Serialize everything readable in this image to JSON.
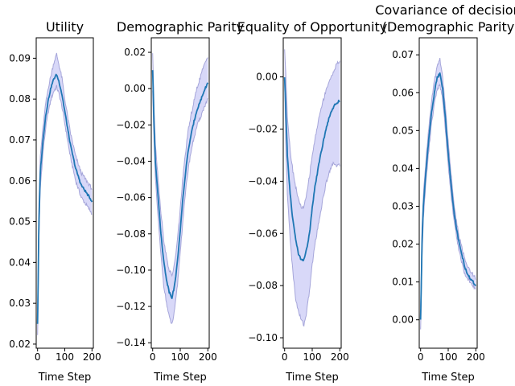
{
  "chart_data": [
    {
      "type": "line",
      "title_lines": [
        "Utility"
      ],
      "xlabel": "Time Step",
      "ylabel": "",
      "xlim": [
        -5,
        205
      ],
      "ylim": [
        0.019,
        0.095
      ],
      "xticks": [
        0,
        100,
        200
      ],
      "yticks": [
        0.02,
        0.03,
        0.04,
        0.05,
        0.06,
        0.07,
        0.08,
        0.09
      ],
      "ytick_labels": [
        "0.02",
        "0.03",
        "0.04",
        "0.05",
        "0.06",
        "0.07",
        "0.08",
        "0.09"
      ],
      "series": [
        {
          "x": [
            0,
            5,
            10,
            20,
            30,
            40,
            50,
            60,
            70,
            80,
            90,
            100,
            110,
            120,
            130,
            140,
            150,
            160,
            170,
            180,
            190,
            200
          ],
          "mean": [
            0.025,
            0.05,
            0.062,
            0.07,
            0.076,
            0.08,
            0.083,
            0.085,
            0.086,
            0.084,
            0.081,
            0.077,
            0.073,
            0.069,
            0.066,
            0.063,
            0.061,
            0.059,
            0.058,
            0.057,
            0.056,
            0.055
          ],
          "lower": [
            0.022,
            0.046,
            0.058,
            0.067,
            0.073,
            0.077,
            0.08,
            0.082,
            0.083,
            0.081,
            0.078,
            0.074,
            0.07,
            0.066,
            0.063,
            0.06,
            0.058,
            0.056,
            0.055,
            0.054,
            0.053,
            0.052
          ],
          "upper": [
            0.028,
            0.054,
            0.066,
            0.073,
            0.079,
            0.083,
            0.086,
            0.089,
            0.091,
            0.088,
            0.085,
            0.08,
            0.076,
            0.072,
            0.069,
            0.066,
            0.064,
            0.062,
            0.061,
            0.06,
            0.059,
            0.058
          ]
        }
      ]
    },
    {
      "type": "line",
      "title_lines": [
        "Demographic Parity"
      ],
      "xlabel": "Time Step",
      "ylabel": "",
      "xlim": [
        -5,
        205
      ],
      "ylim": [
        -0.143,
        0.028
      ],
      "xticks": [
        0,
        100,
        200
      ],
      "yticks": [
        -0.14,
        -0.12,
        -0.1,
        -0.08,
        -0.06,
        -0.04,
        -0.02,
        0.0,
        0.02
      ],
      "ytick_labels": [
        "−0.14",
        "−0.12",
        "−0.10",
        "−0.08",
        "−0.06",
        "−0.04",
        "−0.02",
        "0.00",
        "0.02"
      ],
      "series": [
        {
          "x": [
            0,
            5,
            10,
            20,
            30,
            40,
            50,
            60,
            70,
            80,
            90,
            100,
            110,
            120,
            130,
            140,
            150,
            160,
            170,
            180,
            190,
            200
          ],
          "mean": [
            0.01,
            -0.02,
            -0.04,
            -0.06,
            -0.08,
            -0.095,
            -0.105,
            -0.112,
            -0.115,
            -0.108,
            -0.095,
            -0.078,
            -0.06,
            -0.045,
            -0.033,
            -0.025,
            -0.018,
            -0.012,
            -0.008,
            -0.004,
            0.0,
            0.003
          ],
          "lower": [
            0.0,
            -0.03,
            -0.05,
            -0.072,
            -0.092,
            -0.108,
            -0.118,
            -0.126,
            -0.13,
            -0.122,
            -0.108,
            -0.09,
            -0.072,
            -0.056,
            -0.043,
            -0.034,
            -0.027,
            -0.021,
            -0.017,
            -0.013,
            -0.009,
            -0.006
          ],
          "upper": [
            0.02,
            -0.01,
            -0.03,
            -0.05,
            -0.068,
            -0.083,
            -0.093,
            -0.1,
            -0.103,
            -0.096,
            -0.083,
            -0.066,
            -0.048,
            -0.034,
            -0.022,
            -0.014,
            -0.007,
            0.0,
            0.005,
            0.01,
            0.014,
            0.018
          ]
        }
      ]
    },
    {
      "type": "line",
      "title_lines": [
        "Equality of Opportunity"
      ],
      "xlabel": "Time Step",
      "ylabel": "",
      "xlim": [
        -5,
        205
      ],
      "ylim": [
        -0.104,
        0.015
      ],
      "xticks": [
        0,
        100,
        200
      ],
      "yticks": [
        -0.1,
        -0.08,
        -0.06,
        -0.04,
        -0.02,
        0.0
      ],
      "ytick_labels": [
        "−0.10",
        "−0.08",
        "−0.06",
        "−0.04",
        "−0.02",
        "0.00"
      ],
      "series": [
        {
          "x": [
            0,
            5,
            10,
            20,
            30,
            40,
            50,
            60,
            70,
            80,
            90,
            100,
            110,
            120,
            130,
            140,
            150,
            160,
            170,
            180,
            190,
            200
          ],
          "mean": [
            0.0,
            -0.015,
            -0.03,
            -0.045,
            -0.055,
            -0.062,
            -0.068,
            -0.07,
            -0.07,
            -0.066,
            -0.06,
            -0.05,
            -0.042,
            -0.036,
            -0.03,
            -0.025,
            -0.02,
            -0.016,
            -0.013,
            -0.011,
            -0.01,
            -0.009
          ],
          "lower": [
            -0.002,
            -0.03,
            -0.045,
            -0.062,
            -0.075,
            -0.085,
            -0.09,
            -0.093,
            -0.095,
            -0.09,
            -0.082,
            -0.072,
            -0.064,
            -0.058,
            -0.052,
            -0.046,
            -0.041,
            -0.037,
            -0.034,
            -0.033,
            -0.034,
            -0.034
          ],
          "upper": [
            0.01,
            0.0,
            -0.015,
            -0.028,
            -0.036,
            -0.042,
            -0.047,
            -0.05,
            -0.05,
            -0.045,
            -0.038,
            -0.03,
            -0.024,
            -0.018,
            -0.013,
            -0.009,
            -0.005,
            -0.002,
            0.0,
            0.003,
            0.005,
            0.006
          ]
        }
      ]
    },
    {
      "type": "line",
      "title_lines": [
        "Covariance of decision",
        "(Demographic Parity"
      ],
      "xlabel": "Time Step",
      "ylabel": "",
      "xlim": [
        -5,
        205
      ],
      "ylim": [
        -0.0075,
        0.0745
      ],
      "xticks": [
        0,
        100,
        200
      ],
      "yticks": [
        0.0,
        0.01,
        0.02,
        0.03,
        0.04,
        0.05,
        0.06,
        0.07
      ],
      "ytick_labels": [
        "0.00",
        "0.01",
        "0.02",
        "0.03",
        "0.04",
        "0.05",
        "0.06",
        "0.07"
      ],
      "series": [
        {
          "x": [
            0,
            5,
            10,
            20,
            30,
            40,
            50,
            60,
            70,
            80,
            90,
            100,
            110,
            120,
            130,
            140,
            150,
            160,
            170,
            180,
            190,
            200
          ],
          "mean": [
            0.0,
            0.02,
            0.03,
            0.04,
            0.048,
            0.055,
            0.06,
            0.064,
            0.065,
            0.061,
            0.053,
            0.044,
            0.036,
            0.029,
            0.024,
            0.02,
            0.017,
            0.014,
            0.012,
            0.011,
            0.01,
            0.009
          ],
          "lower": [
            -0.003,
            0.016,
            0.027,
            0.037,
            0.045,
            0.052,
            0.057,
            0.061,
            0.062,
            0.058,
            0.05,
            0.041,
            0.033,
            0.027,
            0.022,
            0.018,
            0.015,
            0.012,
            0.011,
            0.01,
            0.009,
            0.008
          ],
          "upper": [
            0.003,
            0.024,
            0.033,
            0.043,
            0.051,
            0.058,
            0.063,
            0.067,
            0.069,
            0.064,
            0.056,
            0.047,
            0.039,
            0.031,
            0.026,
            0.022,
            0.019,
            0.016,
            0.014,
            0.013,
            0.012,
            0.011
          ]
        }
      ]
    }
  ],
  "colors": {
    "line": "#1f77b4",
    "band_fill": "#c8c8f5",
    "band_edge": "#a6a6da",
    "axes": "#000000",
    "text": "#000000"
  }
}
